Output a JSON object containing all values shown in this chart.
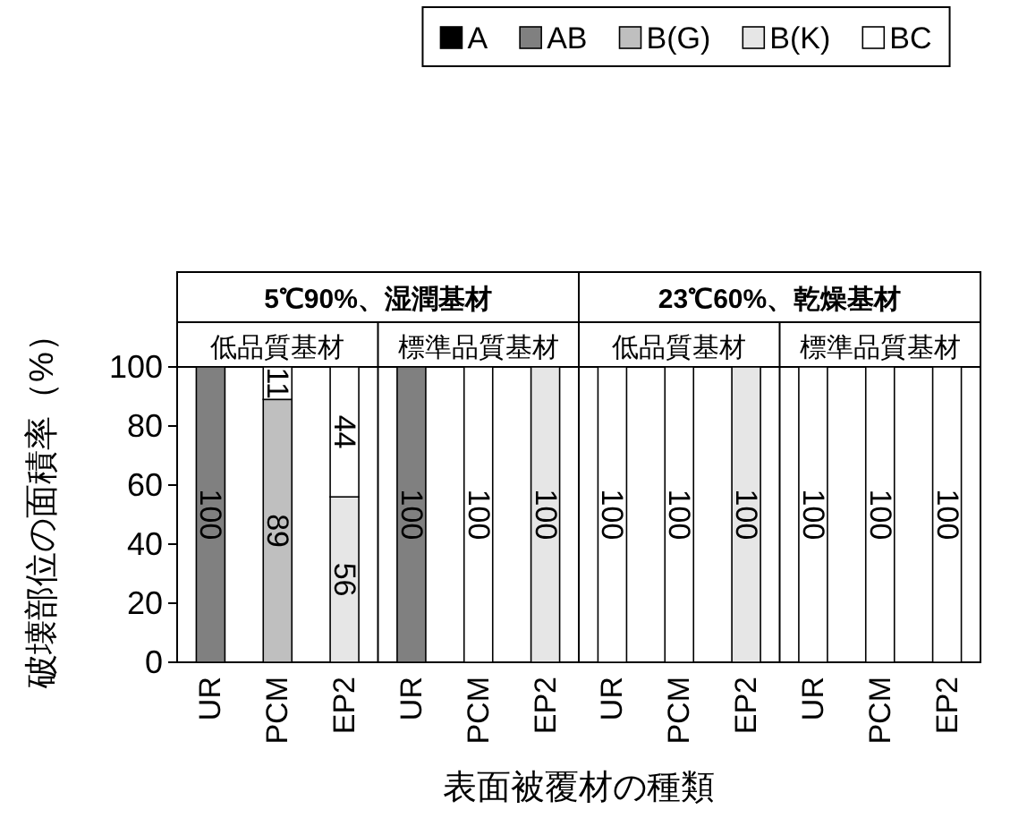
{
  "chart_data": {
    "type": "bar",
    "stacked": true,
    "ylabel": "破壊部位の面積率（%）",
    "xlabel": "表面被覆材の種類",
    "categories": [
      "UR",
      "PCM",
      "EP2",
      "UR",
      "PCM",
      "EP2",
      "UR",
      "PCM",
      "EP2",
      "UR",
      "PCM",
      "EP2"
    ],
    "annotations": [
      "5℃90%、湿潤基材",
      "23℃60%、乾燥基材",
      "低品質基材",
      "標準品質基材",
      "低品質基材",
      "標準品質基材"
    ],
    "ylim": [
      0,
      100
    ],
    "yticks": [
      0,
      20,
      40,
      60,
      80,
      100
    ],
    "grid": false,
    "legend": "top",
    "data_labels": true,
    "series": [
      {
        "name": "A",
        "color": "#000000",
        "values": [
          null,
          null,
          null,
          null,
          null,
          null,
          null,
          null,
          null,
          null,
          null,
          null
        ]
      },
      {
        "name": "AB",
        "color": "#808080",
        "values": [
          100,
          null,
          null,
          100,
          null,
          null,
          null,
          null,
          null,
          null,
          null,
          null
        ]
      },
      {
        "name": "B(G)",
        "color": "#bfbfbf",
        "values": [
          null,
          89,
          null,
          null,
          null,
          null,
          null,
          null,
          null,
          null,
          null,
          null
        ]
      },
      {
        "name": "B(K)",
        "color": "#e6e6e6",
        "values": [
          null,
          null,
          56,
          null,
          null,
          100,
          null,
          null,
          100,
          null,
          null,
          null
        ]
      },
      {
        "name": "BC",
        "color": "#ffffff",
        "values": [
          null,
          11,
          44,
          null,
          100,
          null,
          100,
          100,
          null,
          100,
          100,
          100
        ]
      }
    ]
  }
}
